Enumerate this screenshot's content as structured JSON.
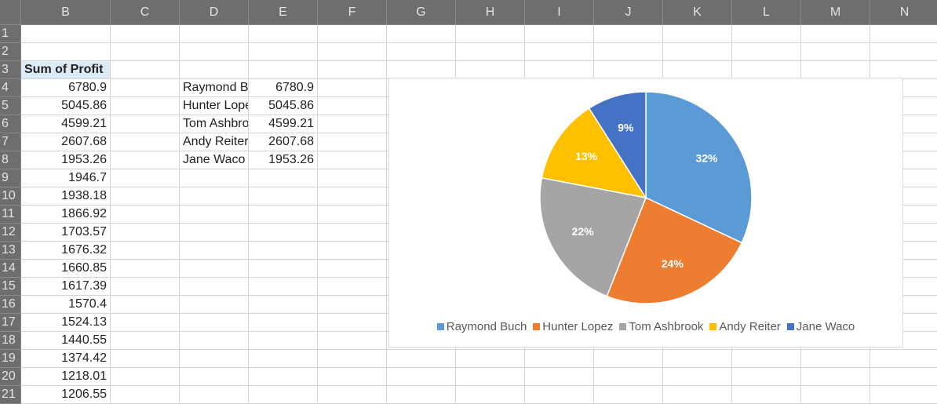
{
  "sheet": {
    "columns": [
      "B",
      "C",
      "D",
      "E",
      "F",
      "G",
      "H",
      "I",
      "J",
      "K",
      "L",
      "M",
      "N"
    ],
    "row_numbers": [
      1,
      2,
      3,
      4,
      5,
      6,
      7,
      8,
      9,
      10,
      11,
      12,
      13,
      14,
      15,
      16,
      17,
      18,
      19,
      20,
      21
    ],
    "column_b": {
      "header": "Sum of Profit",
      "values": [
        6780.9,
        5045.86,
        4599.21,
        2607.68,
        1953.26,
        1946.7,
        1938.18,
        1866.92,
        1703.57,
        1676.32,
        1660.85,
        1617.39,
        1570.4,
        1524.13,
        1440.55,
        1374.42,
        1218.01,
        1206.55
      ]
    },
    "pivot": {
      "names": [
        "Raymond Buch",
        "Hunter Lopez",
        "Tom Ashbrook",
        "Andy Reiter",
        "Jane Waco"
      ],
      "values": [
        6780.9,
        5045.86,
        4599.21,
        2607.68,
        1953.26
      ]
    }
  },
  "chart_data": {
    "type": "pie",
    "categories": [
      "Raymond Buch",
      "Hunter Lopez",
      "Tom Ashbrook",
      "Andy Reiter",
      "Jane Waco"
    ],
    "values": [
      32,
      24,
      22,
      13,
      9
    ],
    "value_labels": [
      "32%",
      "24%",
      "22%",
      "13%",
      "9%"
    ],
    "colors": [
      "#5b9bd5",
      "#ed7d31",
      "#a5a5a5",
      "#ffc000",
      "#4472c4"
    ],
    "legend": "bottom"
  }
}
